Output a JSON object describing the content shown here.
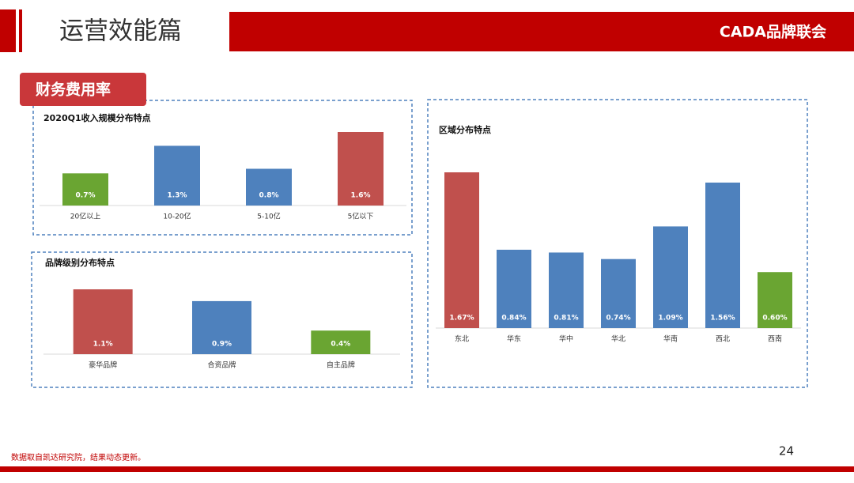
{
  "header": {
    "title": "运营效能篇",
    "brand": "CADA品牌联会"
  },
  "section": "财务费用率",
  "chart_data": [
    {
      "type": "bar",
      "title": "2020Q1收入规模分布特点",
      "categories": [
        "20亿以上",
        "10-20亿",
        "5-10亿",
        "5亿以下"
      ],
      "values": [
        0.7,
        1.3,
        0.8,
        1.6
      ],
      "value_labels": [
        "0.7%",
        "1.3%",
        "0.8%",
        "1.6%"
      ],
      "colors": [
        "#6aa532",
        "#4e81bd",
        "#4e81bd",
        "#c0504d"
      ]
    },
    {
      "type": "bar",
      "title": "品牌级别分布特点",
      "categories": [
        "豪华品牌",
        "合资品牌",
        "自主品牌"
      ],
      "values": [
        1.1,
        0.9,
        0.4
      ],
      "value_labels": [
        "1.1%",
        "0.9%",
        "0.4%"
      ],
      "colors": [
        "#c0504d",
        "#4e81bd",
        "#6aa532"
      ]
    },
    {
      "type": "bar",
      "title": "区域分布特点",
      "categories": [
        "东北",
        "华东",
        "华中",
        "华北",
        "华南",
        "西北",
        "西南"
      ],
      "values": [
        1.67,
        0.84,
        0.81,
        0.74,
        1.09,
        1.56,
        0.6
      ],
      "value_labels": [
        "1.67%",
        "0.84%",
        "0.81%",
        "0.74%",
        "1.09%",
        "1.56%",
        "0.60%"
      ],
      "colors": [
        "#c0504d",
        "#4e81bd",
        "#4e81bd",
        "#4e81bd",
        "#4e81bd",
        "#4e81bd",
        "#6aa532"
      ]
    }
  ],
  "footer": {
    "note": "数据取自凯达研究院，结果动态更新。",
    "page": 24
  }
}
